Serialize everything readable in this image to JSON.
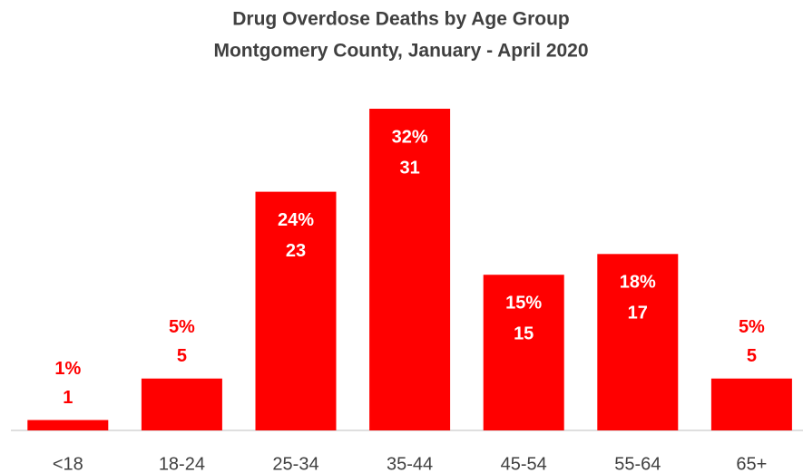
{
  "chart_data": {
    "type": "bar",
    "title": [
      "Drug Overdose Deaths by Age Group",
      "Montgomery County, January - April 2020"
    ],
    "categories": [
      "<18",
      "18-24",
      "25-34",
      "35-44",
      "45-54",
      "55-64",
      "65+"
    ],
    "values": [
      1,
      5,
      23,
      31,
      15,
      17,
      5
    ],
    "percent_labels": [
      "1%",
      "5%",
      "24%",
      "32%",
      "15%",
      "18%",
      "5%"
    ],
    "color": "#ff0000"
  }
}
